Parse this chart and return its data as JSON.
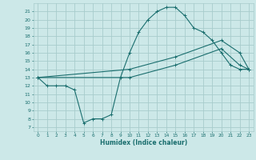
{
  "xlabel": "Humidex (Indice chaleur)",
  "xlim": [
    -0.5,
    23.5
  ],
  "ylim": [
    6.5,
    22
  ],
  "yticks": [
    7,
    8,
    9,
    10,
    11,
    12,
    13,
    14,
    15,
    16,
    17,
    18,
    19,
    20,
    21
  ],
  "xticks": [
    0,
    1,
    2,
    3,
    4,
    5,
    6,
    7,
    8,
    9,
    10,
    11,
    12,
    13,
    14,
    15,
    16,
    17,
    18,
    19,
    20,
    21,
    22,
    23
  ],
  "bg_color": "#cce8e8",
  "line_color": "#1a6e6e",
  "grid_color": "#a8cccc",
  "line1_x": [
    0,
    1,
    2,
    3,
    4,
    5,
    6,
    7,
    8,
    9,
    10,
    11,
    12,
    13,
    14,
    15,
    16,
    17,
    18,
    19,
    20,
    21,
    22,
    23
  ],
  "line1_y": [
    13,
    12,
    12,
    12,
    11.5,
    7.5,
    8,
    8,
    8.5,
    13,
    16,
    18.5,
    20,
    21,
    21.5,
    21.5,
    20.5,
    19,
    18.5,
    17.5,
    16,
    14.5,
    14,
    14
  ],
  "line2_x": [
    0,
    10,
    15,
    20,
    22,
    23
  ],
  "line2_y": [
    13,
    14,
    15.5,
    17.5,
    16,
    14
  ],
  "line3_x": [
    0,
    10,
    15,
    20,
    22,
    23
  ],
  "line3_y": [
    13,
    13,
    14.5,
    16.5,
    14.5,
    14
  ]
}
